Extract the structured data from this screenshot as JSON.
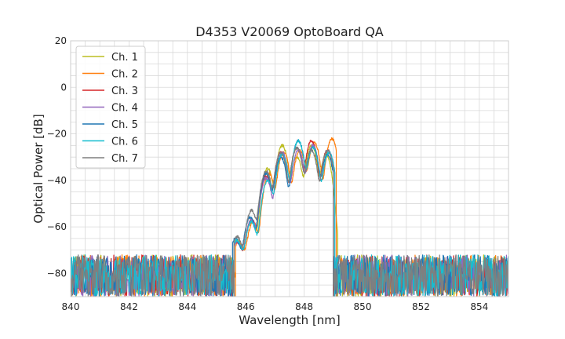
{
  "chart_data": {
    "type": "line",
    "title": "D4353 V20069 OptoBoard QA",
    "xlabel": "Wavelength [nm]",
    "ylabel": "Optical Power [dB]",
    "xlim": [
      840,
      855
    ],
    "ylim": [
      -90,
      20
    ],
    "x_major_ticks": [
      840,
      842,
      844,
      846,
      848,
      850,
      852,
      854
    ],
    "y_major_ticks": [
      -80,
      -60,
      -40,
      -20,
      0,
      20
    ],
    "x_minor_step": 0.5,
    "y_minor_step": 5,
    "grid": true,
    "legend_position": "upper-left",
    "noise_floor": {
      "min": -90,
      "max": -72
    },
    "series": [
      {
        "name": "Ch. 1",
        "color": "#bcbd22",
        "edges": [
          845.6,
          849.15
        ],
        "peaks": [
          [
            845.7,
            -67
          ],
          [
            846.2,
            -57
          ],
          [
            846.75,
            -35
          ],
          [
            847.25,
            -25
          ],
          [
            847.75,
            -30
          ],
          [
            848.25,
            -25
          ],
          [
            848.75,
            -29
          ]
        ]
      },
      {
        "name": "Ch. 2",
        "color": "#ff7f0e",
        "edges": [
          845.65,
          849.1
        ],
        "peaks": [
          [
            845.75,
            -68
          ],
          [
            846.25,
            -58
          ],
          [
            846.8,
            -37
          ],
          [
            847.3,
            -28
          ],
          [
            847.85,
            -27
          ],
          [
            848.35,
            -24
          ],
          [
            848.95,
            -22
          ]
        ]
      },
      {
        "name": "Ch. 3",
        "color": "#d62728",
        "edges": [
          845.6,
          849.0
        ],
        "peaks": [
          [
            845.7,
            -68
          ],
          [
            846.2,
            -57
          ],
          [
            846.7,
            -38
          ],
          [
            847.2,
            -28
          ],
          [
            847.75,
            -26
          ],
          [
            848.25,
            -23
          ],
          [
            848.8,
            -27
          ]
        ]
      },
      {
        "name": "Ch. 4",
        "color": "#9467bd",
        "edges": [
          845.6,
          849.05
        ],
        "peaks": [
          [
            845.7,
            -68
          ],
          [
            846.2,
            -57
          ],
          [
            846.7,
            -39
          ],
          [
            847.25,
            -28
          ],
          [
            847.8,
            -27
          ],
          [
            848.3,
            -25
          ],
          [
            848.85,
            -28
          ]
        ]
      },
      {
        "name": "Ch. 5",
        "color": "#1f77b4",
        "edges": [
          845.55,
          849.0
        ],
        "peaks": [
          [
            845.65,
            -66
          ],
          [
            846.15,
            -56
          ],
          [
            846.7,
            -37
          ],
          [
            847.2,
            -30
          ],
          [
            847.8,
            -23
          ],
          [
            848.3,
            -26
          ],
          [
            848.8,
            -29
          ]
        ]
      },
      {
        "name": "Ch. 6",
        "color": "#17becf",
        "edges": [
          845.6,
          849.05
        ],
        "peaks": [
          [
            845.7,
            -67
          ],
          [
            846.2,
            -58
          ],
          [
            846.75,
            -40
          ],
          [
            847.25,
            -29
          ],
          [
            847.8,
            -23
          ],
          [
            848.3,
            -26
          ],
          [
            848.85,
            -28
          ]
        ]
      },
      {
        "name": "Ch. 7",
        "color": "#7f7f7f",
        "edges": [
          845.6,
          849.0
        ],
        "peaks": [
          [
            845.7,
            -65
          ],
          [
            846.2,
            -53
          ],
          [
            846.7,
            -36
          ],
          [
            847.2,
            -28
          ],
          [
            847.75,
            -26
          ],
          [
            848.25,
            -27
          ],
          [
            848.8,
            -27
          ]
        ]
      }
    ]
  }
}
